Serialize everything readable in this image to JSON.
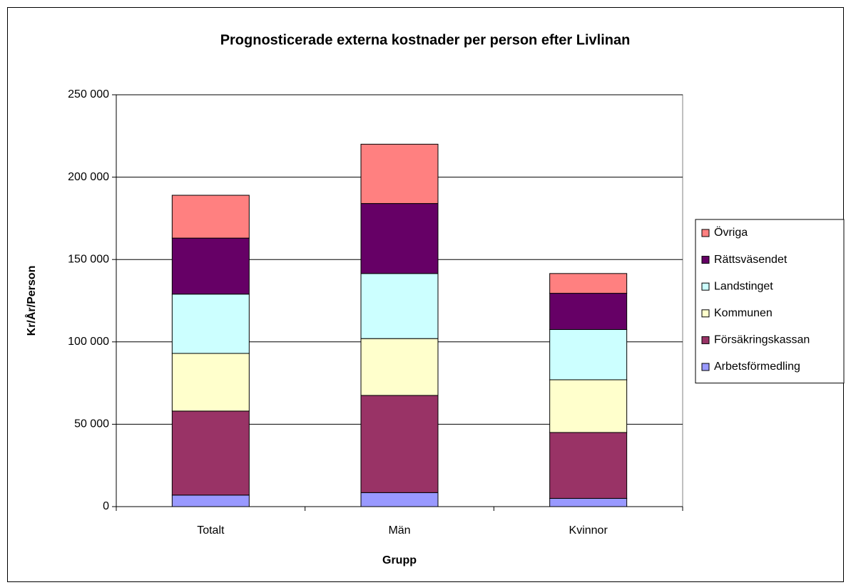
{
  "chart_data": {
    "type": "stacked_bar",
    "title": "Prognosticerade externa kostnader per person efter Livlinan",
    "x_label": "Grupp",
    "y_label": "Kr/År/Person",
    "categories": [
      "Totalt",
      "Män",
      "Kvinnor"
    ],
    "series": [
      {
        "name": "Arbetsförmedling",
        "color": "#9999ff",
        "values": [
          7000,
          8500,
          5000
        ]
      },
      {
        "name": "Försäkringskassan",
        "color": "#993366",
        "values": [
          51000,
          59000,
          40000
        ]
      },
      {
        "name": "Kommunen",
        "color": "#ffffcc",
        "values": [
          35000,
          34500,
          32000
        ]
      },
      {
        "name": "Landstinget",
        "color": "#ccffff",
        "values": [
          36000,
          39500,
          30500
        ]
      },
      {
        "name": "Rättsväsendet",
        "color": "#660066",
        "values": [
          34000,
          42500,
          22000
        ]
      },
      {
        "name": "Övriga",
        "color": "#ff8080",
        "values": [
          26000,
          36000,
          12000
        ]
      }
    ],
    "ylim": [
      0,
      250000
    ],
    "yticks": [
      0,
      {
        "value": 50000,
        "label": "50 000"
      },
      {
        "value": 100000,
        "label": "100 000"
      },
      {
        "value": 150000,
        "label": "150 000"
      },
      {
        "value": 200000,
        "label": "200 000"
      },
      {
        "value": 250000,
        "label": "250 000"
      }
    ],
    "grid": true,
    "legend": "right"
  }
}
